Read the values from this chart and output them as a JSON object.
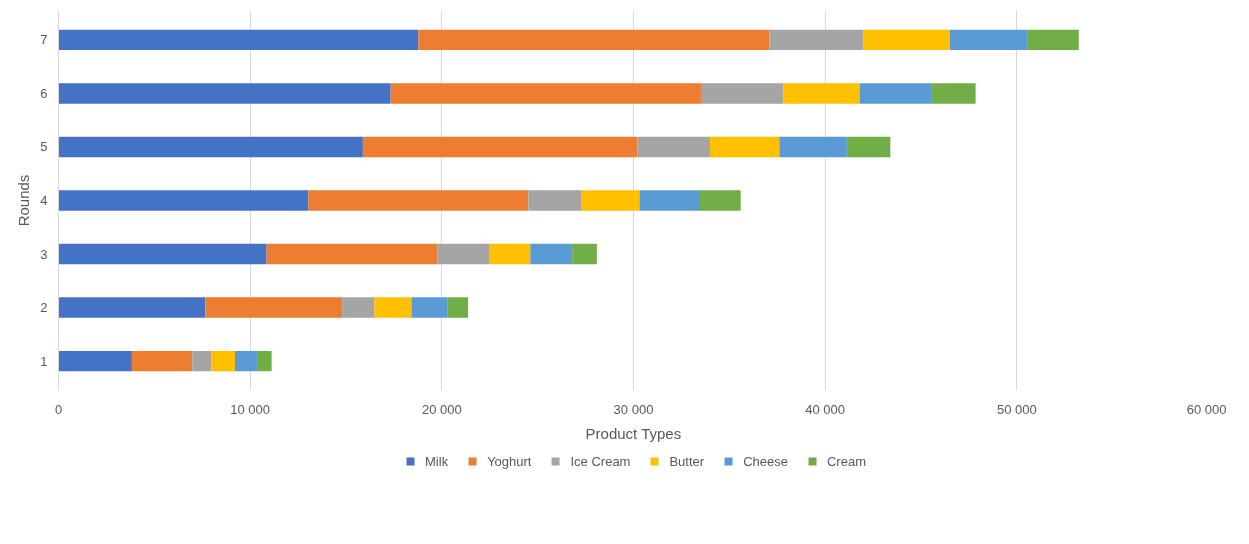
{
  "chart_data": {
    "type": "bar",
    "orientation": "horizontal",
    "stacked": true,
    "xlabel": "Product Types",
    "ylabel": "Rounds",
    "categories": [
      "7",
      "6",
      "5",
      "4",
      "3",
      "2",
      "1"
    ],
    "series": [
      {
        "name": "Milk",
        "color": "#4472c4",
        "values": [
          18780,
          17330,
          15880,
          13040,
          10860,
          7660,
          3830
        ]
      },
      {
        "name": "Yoghurt",
        "color": "#ed7d31",
        "values": [
          18310,
          16190,
          14330,
          11480,
          8900,
          7140,
          3150
        ]
      },
      {
        "name": "Ice Cream",
        "color": "#a5a5a5",
        "values": [
          4910,
          4300,
          3780,
          2740,
          2740,
          1680,
          990
        ]
      },
      {
        "name": "Butter",
        "color": "#ffc000",
        "values": [
          4500,
          3980,
          3620,
          3050,
          2120,
          1940,
          1240
        ]
      },
      {
        "name": "Cheese",
        "color": "#5b9bd5",
        "values": [
          4040,
          3780,
          3520,
          3160,
          2180,
          1860,
          1190
        ]
      },
      {
        "name": "Cream",
        "color": "#70ad47",
        "values": [
          2690,
          2270,
          2270,
          2120,
          1290,
          1090,
          720
        ]
      }
    ],
    "xlim": [
      0,
      60000
    ],
    "xticks": [
      0,
      {
        "value": 10000,
        "label": "10 000"
      },
      {
        "value": 20000,
        "label": "20 000"
      },
      {
        "value": 30000,
        "label": "30 000"
      },
      {
        "value": 40000,
        "label": "40 000"
      },
      {
        "value": 50000,
        "label": "50 000"
      },
      {
        "value": 60000,
        "label": "60 000"
      }
    ],
    "grid": "x",
    "legend": "bottom"
  }
}
